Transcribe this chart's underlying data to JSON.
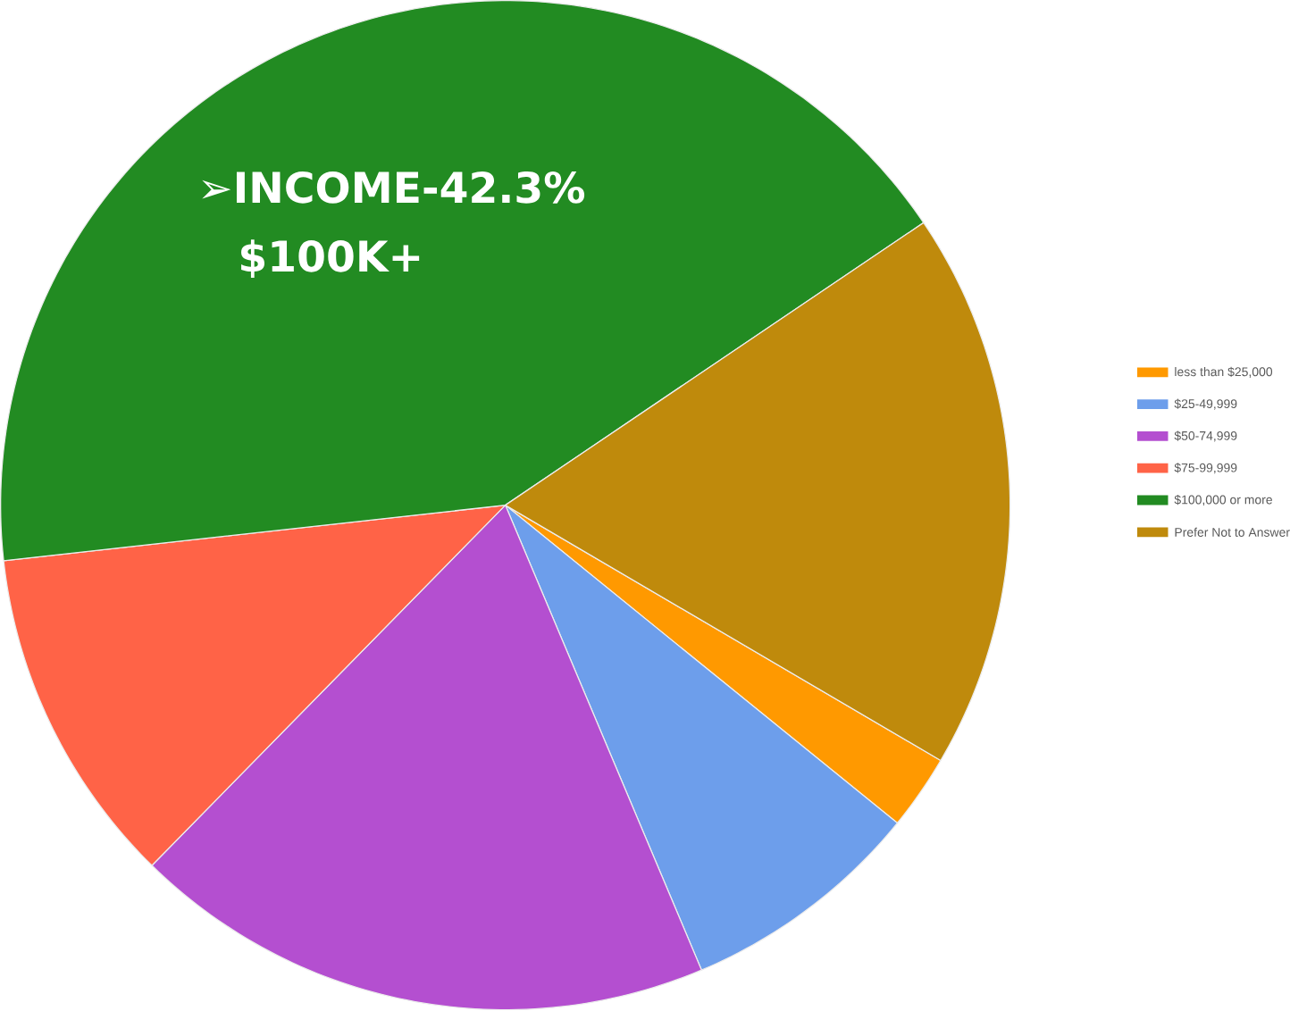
{
  "chart_data": {
    "type": "pie",
    "categories": [
      "less than $25,000",
      "$25-49,999",
      "$50-74,999",
      "$75-99,999",
      "$100,000 or more",
      "Prefer Not to Answer"
    ],
    "values": [
      2.4,
      7.8,
      18.7,
      10.9,
      42.3,
      17.9
    ],
    "colors": [
      "#ff9900",
      "#6d9eeb",
      "#b44fd0",
      "#ff6347",
      "#228b22",
      "#bf8a0c"
    ],
    "legend": "right",
    "annotations": [
      "➢INCOME-42.3%",
      "$100K+"
    ]
  }
}
